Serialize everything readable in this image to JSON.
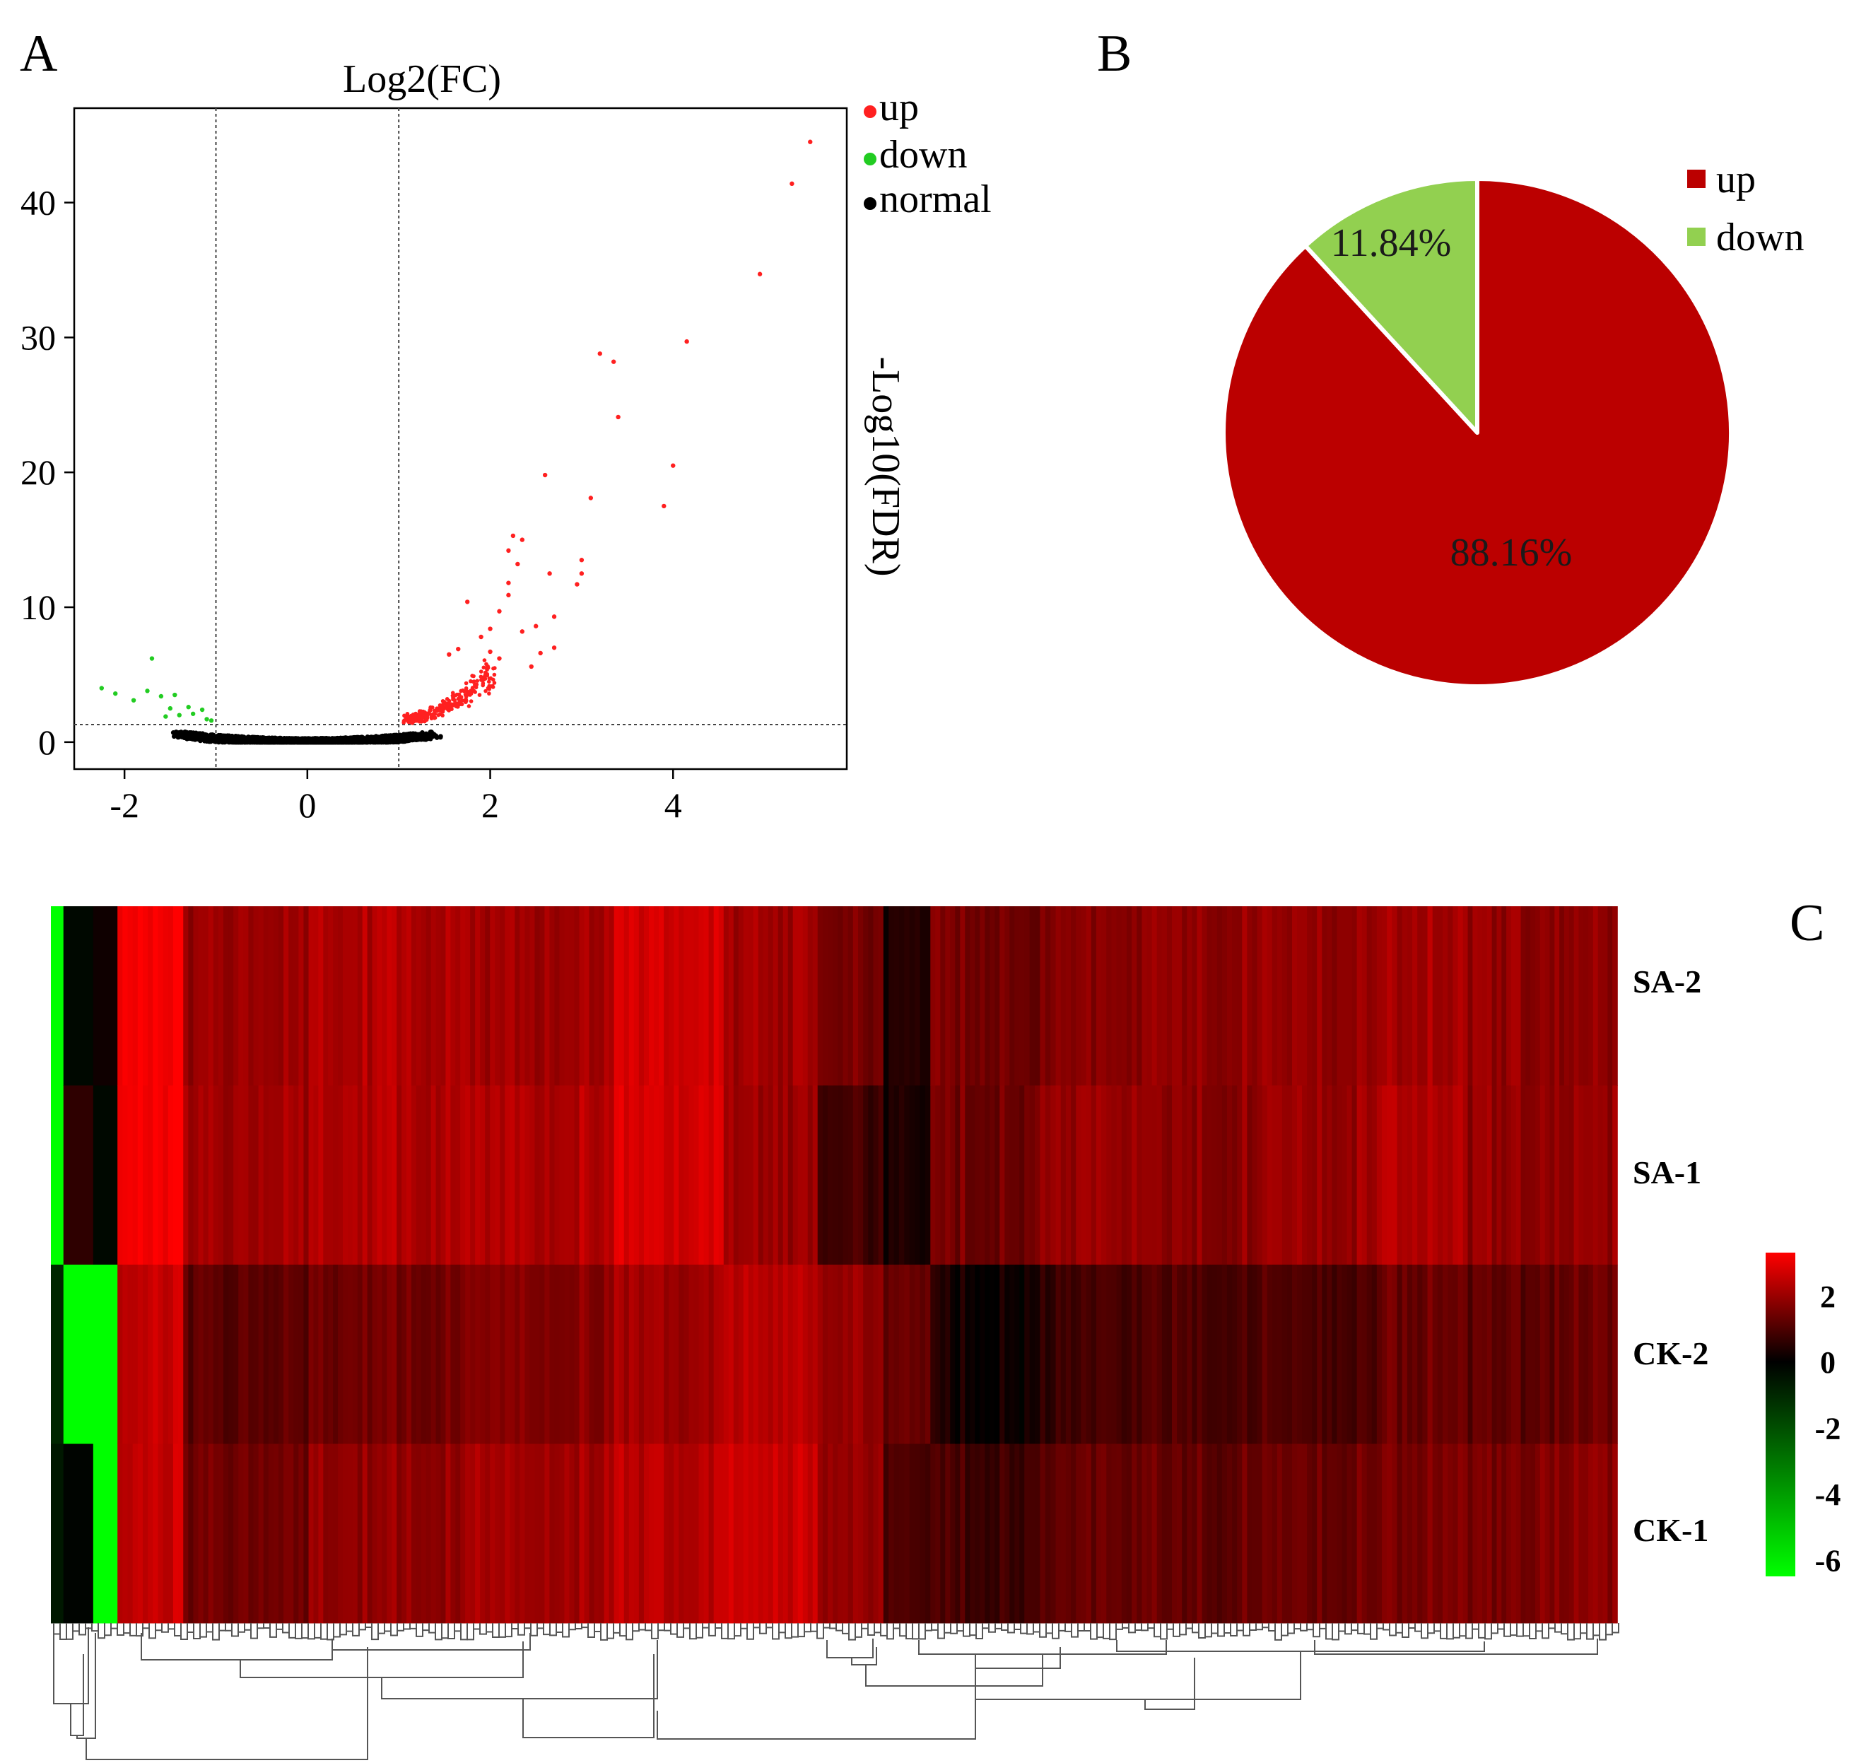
{
  "panels": {
    "a": {
      "label": "A"
    },
    "b": {
      "label": "B"
    },
    "c": {
      "label": "C"
    }
  },
  "chart_data": [
    {
      "type": "scatter",
      "panel": "A",
      "title": "Log2(FC)",
      "xlabel": "",
      "ylabel": "-Log10(FDR)",
      "xlim": [
        -2.55,
        5.9
      ],
      "ylim": [
        -2,
        47
      ],
      "xticks": [
        -2,
        0,
        2,
        4
      ],
      "yticks": [
        0,
        10,
        20,
        30,
        40
      ],
      "fc_threshold_lines": [
        -1,
        1
      ],
      "fdr_threshold_line": 1.3,
      "legend": [
        {
          "name": "up",
          "color": "#ff2020"
        },
        {
          "name": "down",
          "color": "#22cc22"
        },
        {
          "name": "normal",
          "color": "#000000"
        }
      ],
      "up_points": [
        [
          5.5,
          44.5
        ],
        [
          5.3,
          41.4
        ],
        [
          4.95,
          34.7
        ],
        [
          4.15,
          29.7
        ],
        [
          3.2,
          28.8
        ],
        [
          3.35,
          28.2
        ],
        [
          3.4,
          24.1
        ],
        [
          4.0,
          20.5
        ],
        [
          2.6,
          19.8
        ],
        [
          3.9,
          17.5
        ],
        [
          3.1,
          18.1
        ],
        [
          2.25,
          15.3
        ],
        [
          2.35,
          15.0
        ],
        [
          2.2,
          14.2
        ],
        [
          2.3,
          13.2
        ],
        [
          3.0,
          13.5
        ],
        [
          3.0,
          12.5
        ],
        [
          2.65,
          12.5
        ],
        [
          2.95,
          11.7
        ],
        [
          2.2,
          11.8
        ],
        [
          2.2,
          10.9
        ],
        [
          1.75,
          10.4
        ],
        [
          2.1,
          9.7
        ],
        [
          2.7,
          9.3
        ],
        [
          2.5,
          8.6
        ],
        [
          2.0,
          8.4
        ],
        [
          2.35,
          8.2
        ],
        [
          1.9,
          7.8
        ],
        [
          2.7,
          7.0
        ],
        [
          2.55,
          6.6
        ],
        [
          2.0,
          6.7
        ],
        [
          1.55,
          6.5
        ],
        [
          1.65,
          6.9
        ],
        [
          2.1,
          6.2
        ],
        [
          2.45,
          5.6
        ]
      ],
      "down_points": [
        [
          -1.7,
          6.2
        ],
        [
          -2.25,
          4.0
        ],
        [
          -2.1,
          3.6
        ],
        [
          -1.75,
          3.8
        ],
        [
          -1.9,
          3.1
        ],
        [
          -1.6,
          3.4
        ],
        [
          -1.45,
          3.5
        ],
        [
          -1.5,
          2.5
        ],
        [
          -1.3,
          2.6
        ],
        [
          -1.25,
          2.1
        ],
        [
          -1.15,
          2.4
        ],
        [
          -1.4,
          2.0
        ],
        [
          -1.1,
          1.7
        ],
        [
          -1.55,
          1.9
        ],
        [
          -1.05,
          1.6
        ]
      ]
    },
    {
      "type": "pie",
      "panel": "B",
      "slices": [
        {
          "name": "up",
          "value": 88.16,
          "label": "88.16%",
          "color": "#bb0000"
        },
        {
          "name": "down",
          "value": 11.84,
          "label": "11.84%",
          "color": "#92d050"
        }
      ],
      "legend": [
        "up",
        "down"
      ]
    },
    {
      "type": "heatmap",
      "panel": "C",
      "rows": [
        "SA-2",
        "SA-1",
        "CK-2",
        "CK-1"
      ],
      "colorbar": {
        "ticks": [
          2,
          0,
          -2,
          -4,
          -6
        ],
        "range": [
          -6.5,
          3.3
        ],
        "low_color": "#00ff00",
        "mid_color": "#000000",
        "high_color": "#ff0000"
      },
      "column_blocks": [
        {
          "width": 0.008,
          "values": [
            -6.5,
            -6.5,
            -1.0,
            -0.6
          ]
        },
        {
          "width": 0.019,
          "values": [
            -0.2,
            0.6,
            -6.5,
            -0.1
          ]
        },
        {
          "width": 0.0155,
          "values": [
            0.2,
            -0.2,
            -6.5,
            -6.5
          ]
        },
        {
          "width": 0.042,
          "values": [
            3.3,
            3.3,
            2.6,
            2.6
          ]
        },
        {
          "width": 0.08,
          "values": [
            2.0,
            2.1,
            1.2,
            1.5
          ]
        },
        {
          "width": 0.1,
          "values": [
            2.3,
            2.3,
            1.5,
            1.9
          ]
        },
        {
          "width": 0.095,
          "values": [
            2.1,
            2.3,
            1.7,
            2.1
          ]
        },
        {
          "width": 0.07,
          "values": [
            2.7,
            2.8,
            2.1,
            2.4
          ]
        },
        {
          "width": 0.06,
          "values": [
            2.1,
            2.0,
            2.4,
            2.6
          ]
        },
        {
          "width": 0.042,
          "values": [
            1.6,
            0.9,
            2.0,
            2.0
          ]
        },
        {
          "width": 0.03,
          "values": [
            0.3,
            0.2,
            1.2,
            0.8
          ]
        },
        {
          "width": 0.06,
          "values": [
            1.6,
            1.5,
            0.3,
            0.9
          ]
        },
        {
          "width": 0.02,
          "values": [
            1.5,
            1.8,
            0.5,
            1.1
          ]
        },
        {
          "width": 0.055,
          "values": [
            1.8,
            2.0,
            0.9,
            1.4
          ]
        },
        {
          "width": 0.08,
          "values": [
            1.9,
            1.8,
            1.0,
            1.3
          ]
        },
        {
          "width": 0.07,
          "values": [
            1.9,
            2.0,
            1.0,
            1.4
          ]
        },
        {
          "width": 0.055,
          "values": [
            2.1,
            2.3,
            1.4,
            1.6
          ]
        },
        {
          "width": 0.04,
          "values": [
            1.9,
            1.9,
            1.2,
            1.5
          ]
        },
        {
          "width": 0.0585,
          "values": [
            1.8,
            1.9,
            1.3,
            1.7
          ]
        }
      ]
    }
  ]
}
